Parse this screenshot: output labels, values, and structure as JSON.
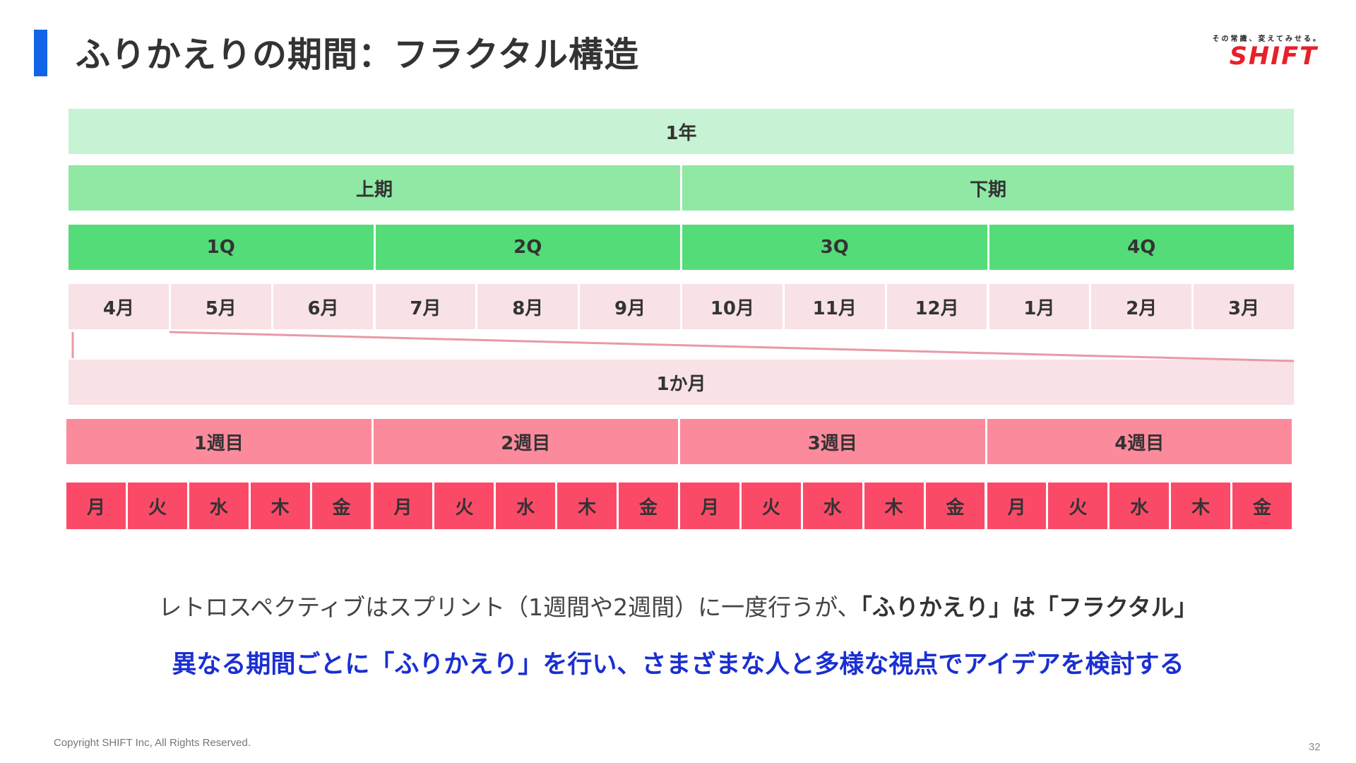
{
  "header": {
    "title": "ふりかえりの期間：フラクタル構造",
    "logo_tagline": "その常識、変えてみせる。",
    "logo_word": "SHIFT"
  },
  "diagram": {
    "year": "1年",
    "halves": [
      "上期",
      "下期"
    ],
    "quarters": [
      "1Q",
      "2Q",
      "3Q",
      "4Q"
    ],
    "months": [
      "4月",
      "5月",
      "6月",
      "7月",
      "8月",
      "9月",
      "10月",
      "11月",
      "12月",
      "1月",
      "2月",
      "3月"
    ],
    "month_detail": "1か月",
    "weeks": [
      "1週目",
      "2週目",
      "3週目",
      "4週目"
    ],
    "days": [
      "月",
      "火",
      "水",
      "木",
      "金"
    ],
    "colors": {
      "year": "#c7f2d4",
      "half": "#8fe8a3",
      "quarter": "#54dc79",
      "month": "#f8e2e5",
      "week": "#fb8a9c",
      "day": "#fb4a68",
      "zoom_line": "#e89aa6"
    }
  },
  "text": {
    "line1_plain": "レトロスペクティブはスプリント（1週間や2週間）に一度行うが、",
    "line1_bold": "「ふりかえり」は「フラクタル」",
    "line2": "異なる期間ごとに「ふりかえり」を行い、さまざまな人と多様な視点でアイデアを検討する"
  },
  "footer": {
    "copyright": "Copyright SHIFT Inc, All Rights Reserved.",
    "page_number": "32"
  }
}
